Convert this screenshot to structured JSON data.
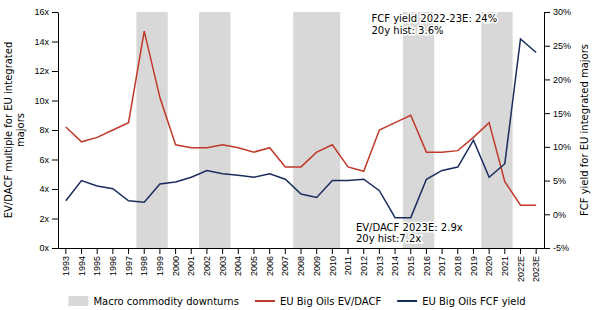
{
  "chart_data": {
    "type": "line",
    "categories": [
      "1993",
      "1994",
      "1995",
      "1996",
      "1997",
      "1998",
      "1999",
      "2000",
      "2001",
      "2002",
      "2003",
      "2004",
      "2005",
      "2006",
      "2007",
      "2008",
      "2009",
      "2010",
      "2011",
      "2012",
      "2013",
      "2014",
      "2015",
      "2016",
      "2017",
      "2018",
      "2019",
      "2020",
      "2021",
      "2022E",
      "2023E"
    ],
    "series": [
      {
        "name": "EU Big Oils EV/DACF",
        "color": "#c0392b",
        "values": [
          8.2,
          7.2,
          7.5,
          8.0,
          8.5,
          14.7,
          10.2,
          7.0,
          6.8,
          6.8,
          7.0,
          6.8,
          6.5,
          6.8,
          5.5,
          5.5,
          6.5,
          7.0,
          5.5,
          5.2,
          8.0,
          8.5,
          9.0,
          6.5,
          6.5,
          6.6,
          7.5,
          8.5,
          4.5,
          2.9,
          2.9
        ]
      },
      {
        "name": "EU Big Oils FCF yield",
        "color": "#1b2d5e",
        "axis": "y2",
        "values": [
          2.0,
          5.0,
          4.2,
          3.8,
          2.0,
          1.8,
          4.5,
          4.8,
          5.5,
          6.5,
          6.0,
          5.8,
          5.5,
          6.0,
          5.2,
          3.0,
          2.5,
          5.0,
          5.0,
          5.2,
          3.5,
          -0.5,
          -0.5,
          5.2,
          6.5,
          7.0,
          11.0,
          5.5,
          7.5,
          26.0,
          24.0
        ]
      }
    ],
    "shaded_regions": {
      "name": "Macro commodity downturns",
      "color": "#d8d8d8",
      "spans": [
        [
          "1998",
          "1999"
        ],
        [
          "2002",
          "2003"
        ],
        [
          "2008",
          "2010"
        ],
        [
          "2015",
          "2016"
        ],
        [
          "2020",
          "2021"
        ]
      ]
    },
    "ylabel": "EV/DACF multiple for EU integrated\nmajors",
    "y2label": "FCF yield for EU integrated majors",
    "ylim": [
      0,
      16
    ],
    "yticks": [
      {
        "value": 0,
        "label": "0x"
      },
      {
        "value": 2,
        "label": "2x"
      },
      {
        "value": 4,
        "label": "4x"
      },
      {
        "value": 6,
        "label": "6x"
      },
      {
        "value": 8,
        "label": "8x"
      },
      {
        "value": 10,
        "label": "10x"
      },
      {
        "value": 12,
        "label": "12x"
      },
      {
        "value": 14,
        "label": "14x"
      },
      {
        "value": 16,
        "label": "16x"
      }
    ],
    "y2lim": [
      -5,
      30
    ],
    "y2ticks": [
      {
        "value": -5,
        "label": "-5%"
      },
      {
        "value": 0,
        "label": "0%"
      },
      {
        "value": 5,
        "label": "5%"
      },
      {
        "value": 10,
        "label": "10%"
      },
      {
        "value": 15,
        "label": "15%"
      },
      {
        "value": 20,
        "label": "20%"
      },
      {
        "value": 25,
        "label": "25%"
      },
      {
        "value": 30,
        "label": "30%"
      }
    ],
    "annotations": [
      "FCF yield 2022-23E: 24%\n20y hist: 3.6%",
      "EV/DACF 2023E: 2.9x\n20y hist:7.2x"
    ],
    "grid": false,
    "legend": "bottom"
  }
}
